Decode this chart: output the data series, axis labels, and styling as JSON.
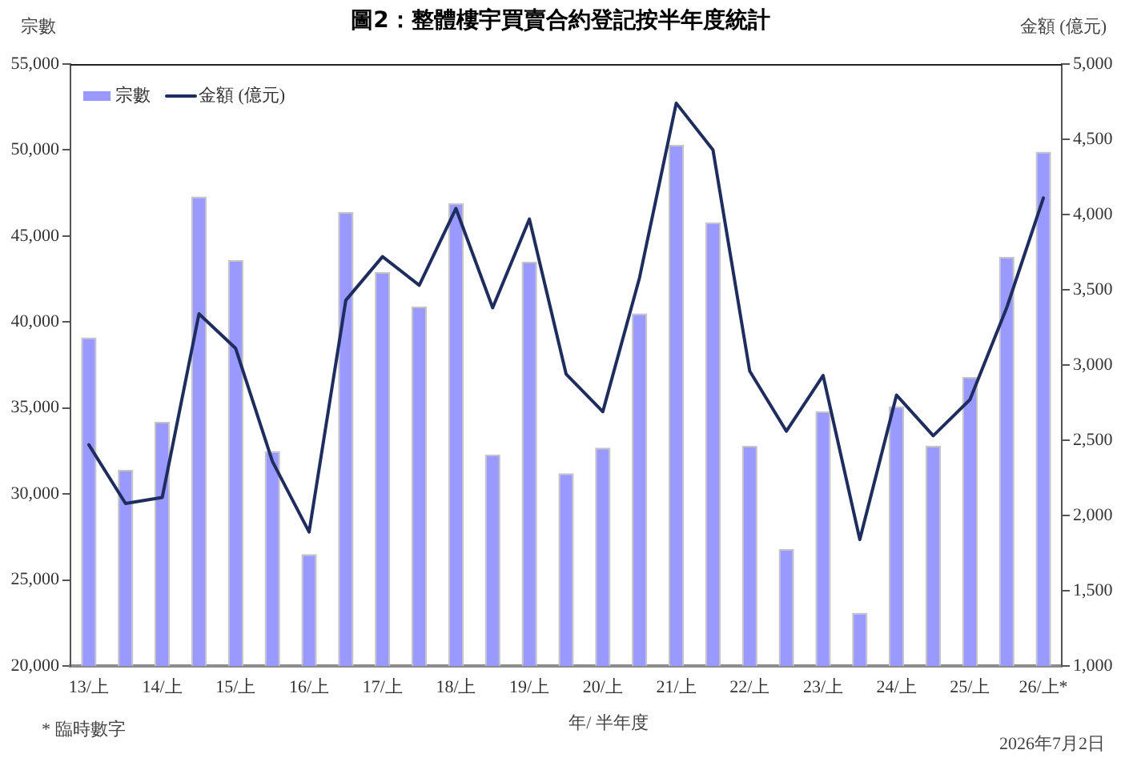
{
  "chart_data": {
    "type": "bar",
    "title": "圖2：整體樓宇買賣合約登記按半年度統計",
    "ylabel": "宗數",
    "y2label": "金額 (億元)",
    "xlabel": "年/ 半年度",
    "categories": [
      "13/上",
      null,
      "14/上",
      null,
      "15/上",
      null,
      "16/上",
      null,
      "17/上",
      null,
      "18/上",
      null,
      "19/上",
      null,
      "20/上",
      null,
      "21/上",
      null,
      "22/上",
      null,
      "23/上",
      null,
      "24/上",
      null,
      "25/上",
      null,
      "26/上*"
    ],
    "series": [
      {
        "name": "宗數",
        "color": "#9999ff",
        "values": [
          39100,
          31400,
          34200,
          47300,
          43600,
          32500,
          26500,
          46400,
          42900,
          40900,
          46900,
          32300,
          43500,
          31200,
          32700,
          40500,
          50300,
          45800,
          32800,
          26800,
          34800,
          23100,
          35100,
          32800,
          36800,
          43800,
          49900
        ]
      },
      {
        "name": "金額 (億元)",
        "type": "line",
        "axis": "y2",
        "color": "#1f2d5e",
        "values": [
          2470,
          2080,
          2120,
          3340,
          3110,
          2360,
          1890,
          3430,
          3720,
          3530,
          4040,
          3380,
          3970,
          2940,
          2690,
          3580,
          4740,
          4430,
          2960,
          2560,
          2930,
          1840,
          2800,
          2530,
          2770,
          3380,
          4110
        ]
      }
    ],
    "ylim": [
      20000,
      55000
    ],
    "yticks": [
      {
        "value": 20000,
        "label": "20,000"
      },
      {
        "value": 25000,
        "label": "25,000"
      },
      {
        "value": 30000,
        "label": "30,000"
      },
      {
        "value": 35000,
        "label": "35,000"
      },
      {
        "value": 40000,
        "label": "40,000"
      },
      {
        "value": 45000,
        "label": "45,000"
      },
      {
        "value": 50000,
        "label": "50,000"
      },
      {
        "value": 55000,
        "label": "55,000"
      }
    ],
    "y2lim": [
      1000,
      5000
    ],
    "y2ticks": [
      {
        "value": 1000,
        "label": "1,000"
      },
      {
        "value": 1500,
        "label": "1,500"
      },
      {
        "value": 2000,
        "label": "2,000"
      },
      {
        "value": 2500,
        "label": "2,500"
      },
      {
        "value": 3000,
        "label": "3,000"
      },
      {
        "value": 3500,
        "label": "3,500"
      },
      {
        "value": 4000,
        "label": "4,000"
      },
      {
        "value": 4500,
        "label": "4,500"
      },
      {
        "value": 5000,
        "label": "5,000"
      }
    ],
    "grid": false,
    "legend": "top left",
    "annotations": [
      "* 臨時數字",
      "2026年7月2日"
    ]
  }
}
